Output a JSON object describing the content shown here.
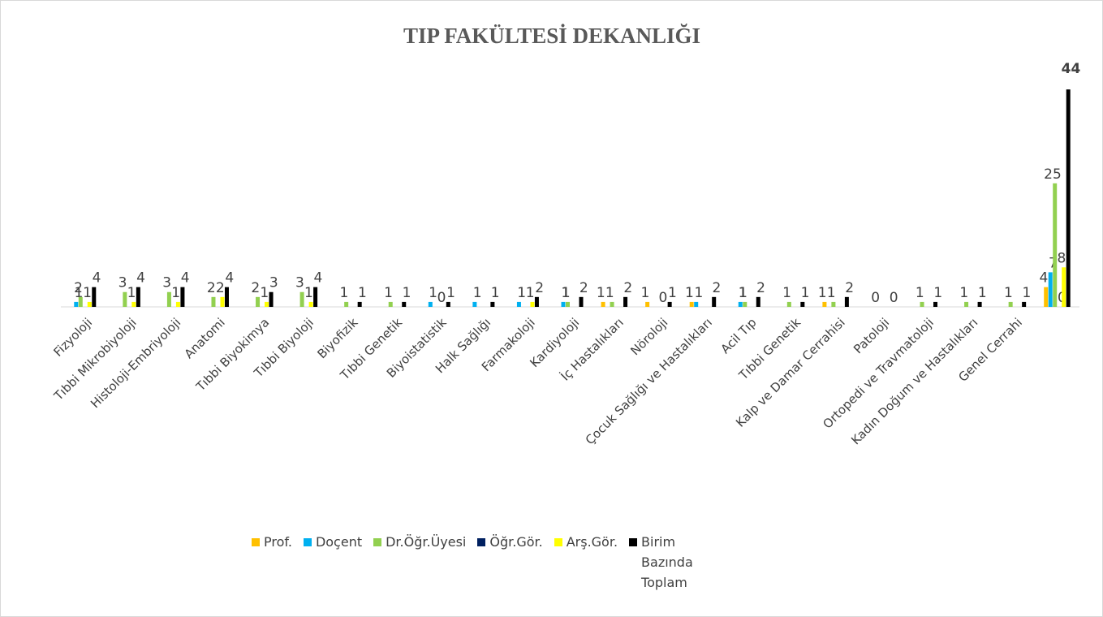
{
  "chart_data": {
    "type": "bar",
    "title": "TIP FAKÜLTESİ DEKANLIĞI",
    "categories": [
      "Fizyoloji",
      "Tıbbi Mikrobiyoloji",
      "Histoloji-Embriyoloji",
      "Anatomi",
      "Tıbbi Biyokimya",
      "Tıbbi Biyoloji",
      "Biyofizik",
      "Tıbbi Genetik",
      "Biyoistatistik",
      "Halk Sağlığı",
      "Farmakoloji",
      "Kardiyoloji",
      "İç Hastalıkları",
      "Nöroloji",
      "Çocuk Sağlığı ve Hastalıkları",
      "Acil Tıp",
      "Tıbbi Genetik",
      "Kalp ve Damar Cerrahisi",
      "Patoloji",
      "Ortopedi ve Travmatoloji",
      "Kadın Doğum ve Hastalıkları",
      "Genel Cerrahi",
      null
    ],
    "series": [
      {
        "name": "Prof.",
        "color": "#ffc000",
        "values": [
          null,
          null,
          null,
          null,
          null,
          null,
          null,
          null,
          null,
          null,
          null,
          null,
          1,
          1,
          1,
          null,
          null,
          1,
          null,
          null,
          null,
          null,
          4
        ]
      },
      {
        "name": "Doçent",
        "color": "#00b0f0",
        "values": [
          1,
          null,
          null,
          null,
          null,
          null,
          null,
          null,
          1,
          1,
          1,
          1,
          null,
          null,
          1,
          1,
          null,
          null,
          null,
          null,
          null,
          null,
          7
        ]
      },
      {
        "name": "Dr.Öğr.Üyesi",
        "color": "#92d050",
        "values": [
          2,
          3,
          3,
          2,
          2,
          3,
          1,
          1,
          null,
          null,
          null,
          1,
          1,
          null,
          null,
          1,
          1,
          1,
          0,
          1,
          1,
          1,
          25
        ]
      },
      {
        "name": "Öğr.Gör.",
        "color": "#002060",
        "values": [
          null,
          null,
          null,
          null,
          null,
          null,
          null,
          null,
          null,
          null,
          null,
          null,
          null,
          null,
          null,
          null,
          null,
          null,
          null,
          null,
          null,
          null,
          0
        ]
      },
      {
        "name": "Arş.Gör.",
        "color": "#ffff00",
        "values": [
          1,
          1,
          1,
          2,
          1,
          1,
          null,
          null,
          0,
          null,
          1,
          null,
          null,
          0,
          null,
          null,
          null,
          null,
          null,
          null,
          null,
          null,
          8
        ]
      },
      {
        "name": "Birim Bazında Toplam",
        "color": "#000000",
        "values": [
          4,
          4,
          4,
          4,
          3,
          4,
          1,
          1,
          1,
          1,
          2,
          2,
          2,
          1,
          2,
          2,
          1,
          2,
          0,
          1,
          1,
          1,
          44
        ]
      }
    ],
    "ylim": [
      0,
      46
    ]
  }
}
